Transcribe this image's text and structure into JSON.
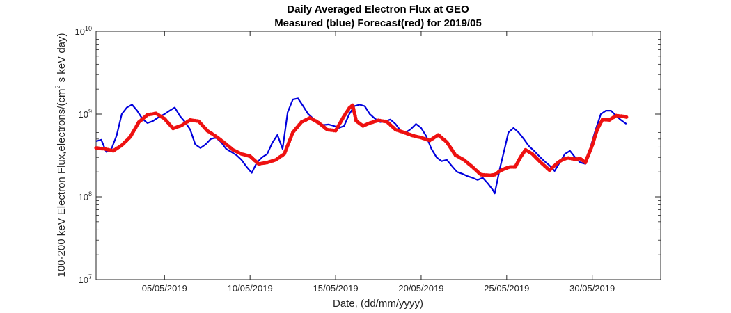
{
  "chart_data": {
    "type": "line",
    "title": "Daily Averaged Electron Flux at GEO",
    "subtitle": "Measured (blue) Forecast(red) for 2019/05",
    "xlabel": "Date, (dd/mm/yyyy)",
    "ylabel": "100-200 keV Electron Flux,electrons/(cm² s keV day)",
    "ylabel_parts": {
      "before": "100-200 keV Electron Flux,electrons/(cm",
      "sup": "2",
      "after": " s keV day)"
    },
    "yscale": "log",
    "xlim": [
      1.0,
      34.0
    ],
    "ylim_exp": [
      7,
      10
    ],
    "grid": false,
    "x_ticks": [
      {
        "x": 5,
        "label": "05/05/2019"
      },
      {
        "x": 10,
        "label": "10/05/2019"
      },
      {
        "x": 15,
        "label": "15/05/2019"
      },
      {
        "x": 20,
        "label": "20/05/2019"
      },
      {
        "x": 25,
        "label": "25/05/2019"
      },
      {
        "x": 30,
        "label": "30/05/2019"
      }
    ],
    "y_ticks": [
      {
        "exp": 7,
        "base": "10",
        "power": "7"
      },
      {
        "exp": 8,
        "base": "10",
        "power": "8"
      },
      {
        "exp": 9,
        "base": "10",
        "power": "9"
      },
      {
        "exp": 10,
        "base": "10",
        "power": "10"
      }
    ],
    "series": [
      {
        "name": "Measured",
        "color": "#0000dd",
        "style": "line",
        "x": [
          1.0,
          1.3,
          1.6,
          1.9,
          2.2,
          2.5,
          2.8,
          3.1,
          3.4,
          3.7,
          4.0,
          4.3,
          4.6,
          5.0,
          5.3,
          5.6,
          5.9,
          6.2,
          6.5,
          6.8,
          7.1,
          7.4,
          7.7,
          8.0,
          8.3,
          8.6,
          8.9,
          9.2,
          9.5,
          9.8,
          10.1,
          10.4,
          10.7,
          11.0,
          11.3,
          11.6,
          11.9,
          12.2,
          12.5,
          12.8,
          13.1,
          13.4,
          13.7,
          14.0,
          14.3,
          14.6,
          14.9,
          15.2,
          15.5,
          15.8,
          16.1,
          16.4,
          16.7,
          17.0,
          17.3,
          17.6,
          17.9,
          18.2,
          18.5,
          18.8,
          19.1,
          19.4,
          19.7,
          20.0,
          20.3,
          20.6,
          20.9,
          21.2,
          21.5,
          21.8,
          22.1,
          22.4,
          22.7,
          23.0,
          23.3,
          23.6,
          23.9,
          24.2,
          24.3,
          24.6,
          24.9,
          25.1,
          25.4,
          25.7,
          26.0,
          26.3,
          26.6,
          26.9,
          27.2,
          27.5,
          27.8,
          28.1,
          28.4,
          28.7,
          29.0,
          29.3,
          29.6,
          29.9,
          30.2,
          30.5,
          30.8,
          31.1,
          31.4,
          31.7,
          32.0
        ],
        "y": [
          470000000.0,
          490000000.0,
          350000000.0,
          380000000.0,
          550000000.0,
          1000000000.0,
          1200000000.0,
          1300000000.0,
          1100000000.0,
          880000000.0,
          780000000.0,
          820000000.0,
          900000000.0,
          1000000000.0,
          1100000000.0,
          1200000000.0,
          950000000.0,
          800000000.0,
          650000000.0,
          430000000.0,
          390000000.0,
          430000000.0,
          500000000.0,
          520000000.0,
          460000000.0,
          380000000.0,
          350000000.0,
          320000000.0,
          280000000.0,
          230000000.0,
          195000000.0,
          260000000.0,
          300000000.0,
          330000000.0,
          450000000.0,
          560000000.0,
          380000000.0,
          1050000000.0,
          1500000000.0,
          1550000000.0,
          1250000000.0,
          1000000000.0,
          880000000.0,
          780000000.0,
          740000000.0,
          750000000.0,
          720000000.0,
          680000000.0,
          720000000.0,
          1000000000.0,
          1250000000.0,
          1300000000.0,
          1250000000.0,
          1000000000.0,
          880000000.0,
          800000000.0,
          820000000.0,
          860000000.0,
          760000000.0,
          630000000.0,
          600000000.0,
          660000000.0,
          760000000.0,
          680000000.0,
          540000000.0,
          380000000.0,
          300000000.0,
          270000000.0,
          280000000.0,
          235000000.0,
          200000000.0,
          190000000.0,
          178000000.0,
          170000000.0,
          160000000.0,
          170000000.0,
          145000000.0,
          120000000.0,
          110000000.0,
          220000000.0,
          400000000.0,
          600000000.0,
          680000000.0,
          600000000.0,
          500000000.0,
          410000000.0,
          360000000.0,
          310000000.0,
          270000000.0,
          240000000.0,
          205000000.0,
          260000000.0,
          330000000.0,
          360000000.0,
          300000000.0,
          260000000.0,
          250000000.0,
          400000000.0,
          650000000.0,
          1000000000.0,
          1100000000.0,
          1100000000.0,
          950000000.0,
          840000000.0,
          760000000.0
        ]
      },
      {
        "name": "Forecast",
        "color": "#ee1111",
        "style": "dots",
        "x": [
          1.0,
          1.5,
          2.0,
          2.5,
          3.0,
          3.5,
          4.0,
          4.5,
          5.0,
          5.5,
          6.0,
          6.5,
          7.0,
          7.5,
          8.0,
          8.5,
          9.0,
          9.5,
          10.0,
          10.5,
          11.0,
          11.5,
          12.0,
          12.5,
          13.0,
          13.5,
          14.0,
          14.5,
          15.0,
          15.5,
          15.8,
          16.0,
          16.2,
          16.6,
          17.0,
          17.5,
          18.0,
          18.5,
          19.0,
          19.5,
          20.0,
          20.5,
          21.0,
          21.5,
          22.0,
          22.5,
          23.0,
          23.5,
          24.0,
          24.3,
          24.6,
          24.9,
          25.2,
          25.5,
          25.8,
          26.1,
          26.5,
          27.0,
          27.5,
          28.0,
          28.3,
          28.6,
          29.0,
          29.3,
          29.6,
          30.0,
          30.3,
          30.6,
          31.0,
          31.4,
          31.8,
          32.0
        ],
        "y": [
          390000000.0,
          380000000.0,
          360000000.0,
          420000000.0,
          530000000.0,
          800000000.0,
          980000000.0,
          1020000000.0,
          880000000.0,
          670000000.0,
          730000000.0,
          850000000.0,
          820000000.0,
          630000000.0,
          540000000.0,
          450000000.0,
          370000000.0,
          330000000.0,
          310000000.0,
          250000000.0,
          260000000.0,
          280000000.0,
          330000000.0,
          600000000.0,
          800000000.0,
          900000000.0,
          790000000.0,
          650000000.0,
          630000000.0,
          950000000.0,
          1180000000.0,
          1280000000.0,
          830000000.0,
          720000000.0,
          780000000.0,
          840000000.0,
          810000000.0,
          650000000.0,
          600000000.0,
          550000000.0,
          520000000.0,
          480000000.0,
          560000000.0,
          460000000.0,
          320000000.0,
          280000000.0,
          230000000.0,
          185000000.0,
          182000000.0,
          185000000.0,
          205000000.0,
          220000000.0,
          230000000.0,
          230000000.0,
          300000000.0,
          370000000.0,
          330000000.0,
          260000000.0,
          210000000.0,
          260000000.0,
          285000000.0,
          295000000.0,
          285000000.0,
          290000000.0,
          260000000.0,
          420000000.0,
          660000000.0,
          860000000.0,
          850000000.0,
          960000000.0,
          940000000.0,
          920000000.0
        ]
      }
    ]
  }
}
